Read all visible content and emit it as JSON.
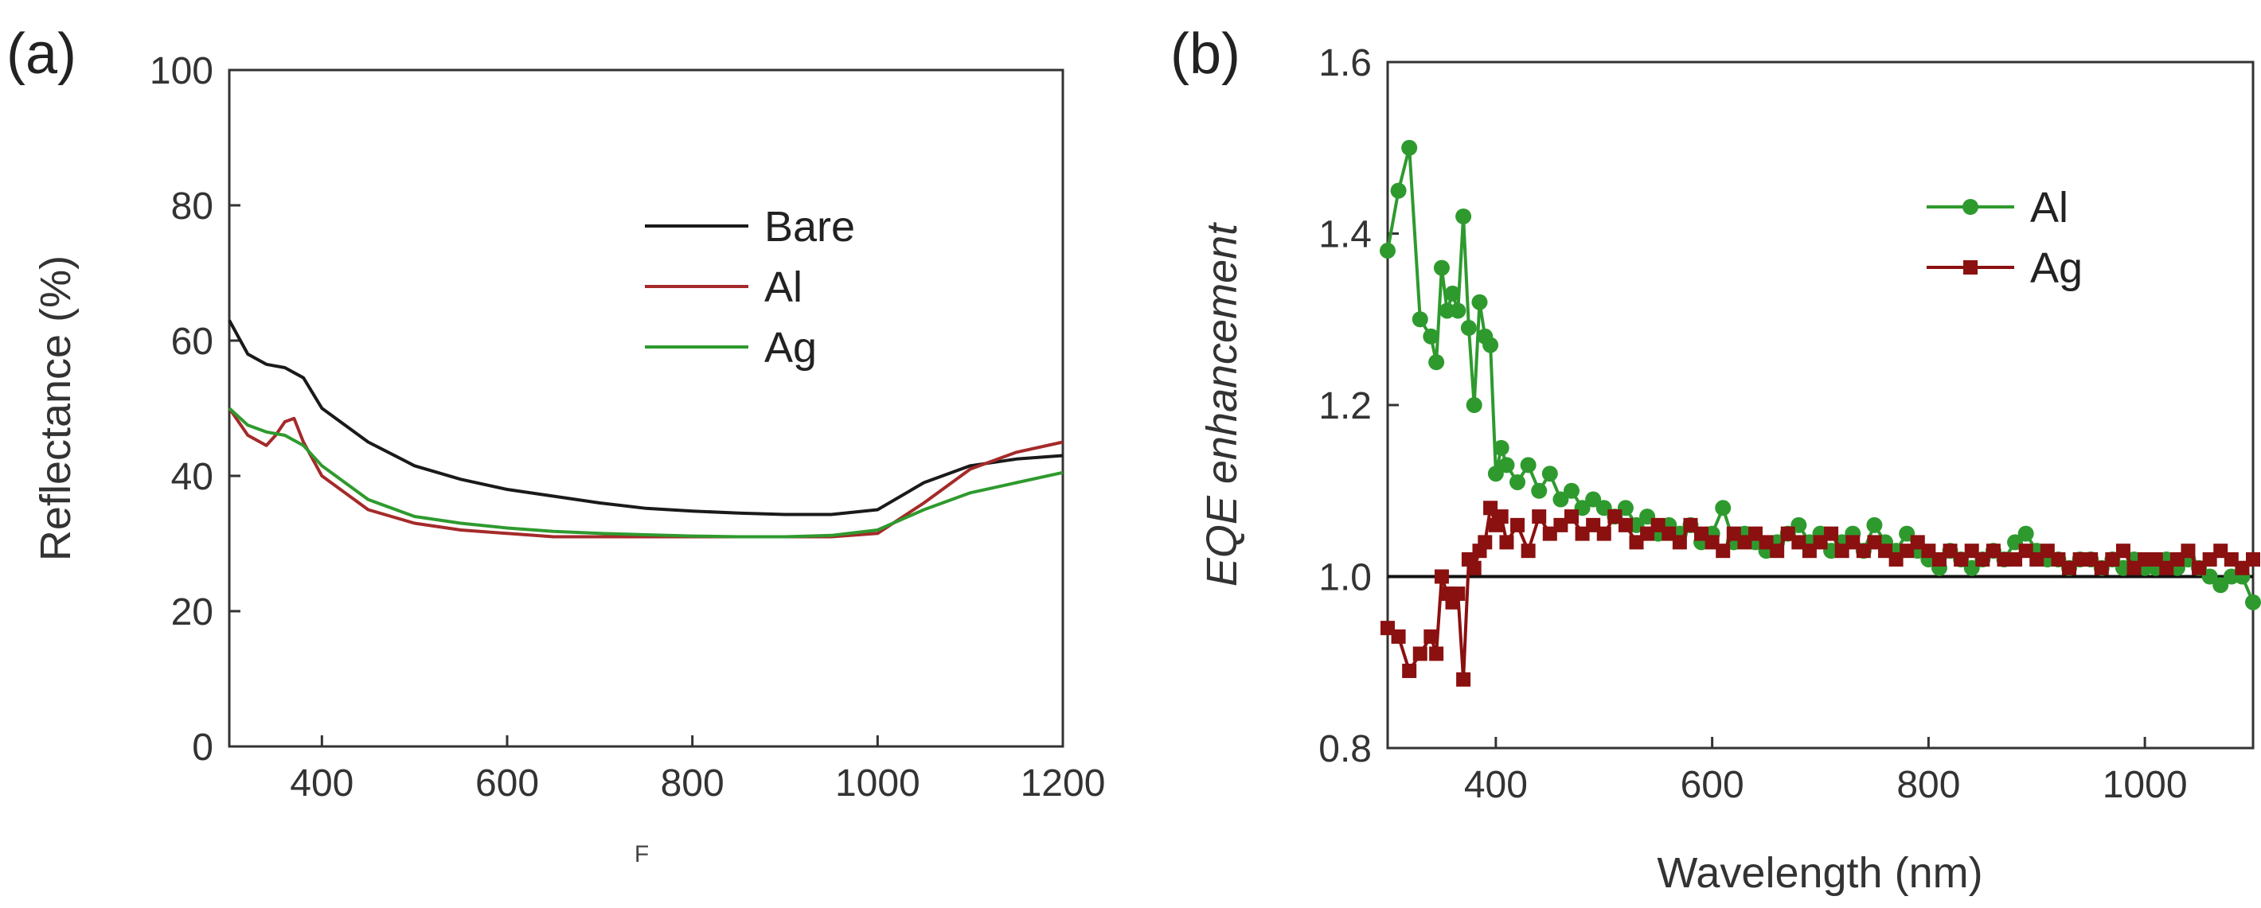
{
  "chart_data": [
    {
      "panel_label": "(a)",
      "type": "line",
      "xlabel": "F",
      "ylabel": "Reflectance (%)",
      "xlim": [
        300,
        1200
      ],
      "ylim": [
        0,
        100
      ],
      "xticks": [
        400,
        600,
        800,
        1000,
        1200
      ],
      "yticks": [
        0,
        20,
        40,
        60,
        80,
        100
      ],
      "legend_position": "top-right",
      "grid": false,
      "series": [
        {
          "name": "Bare",
          "color": "#1a1a1a",
          "x": [
            300,
            320,
            340,
            360,
            380,
            400,
            450,
            500,
            550,
            600,
            650,
            700,
            750,
            800,
            850,
            900,
            950,
            1000,
            1050,
            1100,
            1150,
            1200
          ],
          "y": [
            63,
            58,
            56.5,
            56,
            54.5,
            50,
            45,
            41.5,
            39.5,
            38,
            37,
            36,
            35.2,
            34.8,
            34.5,
            34.3,
            34.3,
            35,
            39,
            41.5,
            42.5,
            43
          ]
        },
        {
          "name": "Al",
          "color": "#a52a2a",
          "x": [
            300,
            320,
            340,
            350,
            360,
            370,
            380,
            400,
            450,
            500,
            550,
            600,
            650,
            700,
            750,
            800,
            850,
            900,
            950,
            1000,
            1050,
            1100,
            1150,
            1200
          ],
          "y": [
            50,
            46,
            44.5,
            46,
            48,
            48.5,
            45,
            40,
            35,
            33,
            32,
            31.5,
            31,
            31,
            31,
            31,
            31,
            31,
            31,
            31.5,
            36,
            41,
            43.5,
            45
          ]
        },
        {
          "name": "Ag",
          "color": "#2e9a2e",
          "x": [
            300,
            320,
            340,
            360,
            380,
            400,
            450,
            500,
            550,
            600,
            650,
            700,
            750,
            800,
            850,
            900,
            950,
            1000,
            1050,
            1100,
            1150,
            1200
          ],
          "y": [
            50,
            47.5,
            46.5,
            46,
            44.5,
            41.5,
            36.5,
            34,
            33,
            32.3,
            31.8,
            31.5,
            31.3,
            31.1,
            31,
            31,
            31.2,
            32,
            35,
            37.5,
            39,
            40.5
          ]
        }
      ]
    },
    {
      "panel_label": "(b)",
      "type": "line",
      "xlabel": "Wavelength (nm)",
      "ylabel": "EQE enhancement",
      "xlim": [
        300,
        1100
      ],
      "ylim": [
        0.8,
        1.6
      ],
      "xticks": [
        400,
        600,
        800,
        1000
      ],
      "yticks": [
        0.8,
        1.0,
        1.2,
        1.4,
        1.6
      ],
      "reference_line": 1.0,
      "legend_position": "top-right",
      "grid": false,
      "series": [
        {
          "name": "Al",
          "color": "#2e9a2e",
          "marker": "circle",
          "x": [
            300,
            310,
            320,
            330,
            340,
            345,
            350,
            355,
            360,
            365,
            370,
            375,
            380,
            385,
            390,
            395,
            400,
            405,
            410,
            420,
            430,
            440,
            450,
            460,
            470,
            480,
            490,
            500,
            510,
            520,
            530,
            540,
            550,
            560,
            570,
            580,
            590,
            600,
            610,
            620,
            630,
            640,
            650,
            660,
            670,
            680,
            690,
            700,
            710,
            720,
            730,
            740,
            750,
            760,
            770,
            780,
            790,
            800,
            810,
            820,
            830,
            840,
            850,
            860,
            870,
            880,
            890,
            900,
            910,
            920,
            930,
            940,
            950,
            960,
            970,
            980,
            990,
            1000,
            1010,
            1020,
            1030,
            1040,
            1050,
            1060,
            1070,
            1080,
            1090,
            1100
          ],
          "y": [
            1.38,
            1.45,
            1.5,
            1.3,
            1.28,
            1.25,
            1.36,
            1.31,
            1.33,
            1.31,
            1.42,
            1.29,
            1.2,
            1.32,
            1.28,
            1.27,
            1.12,
            1.15,
            1.13,
            1.11,
            1.13,
            1.1,
            1.12,
            1.09,
            1.1,
            1.08,
            1.09,
            1.08,
            1.07,
            1.08,
            1.06,
            1.07,
            1.05,
            1.06,
            1.05,
            1.06,
            1.04,
            1.05,
            1.08,
            1.04,
            1.05,
            1.04,
            1.03,
            1.04,
            1.05,
            1.06,
            1.04,
            1.05,
            1.03,
            1.04,
            1.05,
            1.03,
            1.06,
            1.04,
            1.03,
            1.05,
            1.03,
            1.02,
            1.01,
            1.03,
            1.02,
            1.01,
            1.02,
            1.03,
            1.02,
            1.04,
            1.05,
            1.03,
            1.02,
            1.02,
            1.01,
            1.02,
            1.02,
            1.01,
            1.02,
            1.01,
            1.02,
            1.01,
            1.01,
            1.02,
            1.01,
            1.02,
            1.01,
            1.0,
            0.99,
            1.0,
            1.0,
            0.97
          ]
        },
        {
          "name": "Ag",
          "color": "#8b1010",
          "marker": "square",
          "x": [
            300,
            310,
            320,
            330,
            340,
            345,
            350,
            355,
            360,
            365,
            370,
            375,
            380,
            385,
            390,
            395,
            400,
            405,
            410,
            420,
            430,
            440,
            450,
            460,
            470,
            480,
            490,
            500,
            510,
            520,
            530,
            540,
            550,
            560,
            570,
            580,
            590,
            600,
            610,
            620,
            630,
            640,
            650,
            660,
            670,
            680,
            690,
            700,
            710,
            720,
            730,
            740,
            750,
            760,
            770,
            780,
            790,
            800,
            810,
            820,
            830,
            840,
            850,
            860,
            870,
            880,
            890,
            900,
            910,
            920,
            930,
            940,
            950,
            960,
            970,
            980,
            990,
            1000,
            1010,
            1020,
            1030,
            1040,
            1050,
            1060,
            1070,
            1080,
            1090,
            1100
          ],
          "y": [
            0.94,
            0.93,
            0.89,
            0.91,
            0.93,
            0.91,
            1.0,
            0.98,
            0.97,
            0.98,
            0.88,
            1.02,
            1.01,
            1.03,
            1.04,
            1.08,
            1.06,
            1.07,
            1.04,
            1.06,
            1.03,
            1.07,
            1.05,
            1.06,
            1.07,
            1.05,
            1.06,
            1.05,
            1.07,
            1.06,
            1.04,
            1.05,
            1.06,
            1.05,
            1.04,
            1.06,
            1.05,
            1.04,
            1.03,
            1.05,
            1.04,
            1.05,
            1.04,
            1.03,
            1.05,
            1.04,
            1.03,
            1.04,
            1.05,
            1.03,
            1.04,
            1.03,
            1.04,
            1.03,
            1.02,
            1.03,
            1.04,
            1.03,
            1.02,
            1.03,
            1.02,
            1.03,
            1.02,
            1.03,
            1.02,
            1.02,
            1.03,
            1.02,
            1.03,
            1.02,
            1.01,
            1.02,
            1.02,
            1.01,
            1.02,
            1.03,
            1.01,
            1.02,
            1.02,
            1.01,
            1.02,
            1.03,
            1.01,
            1.02,
            1.03,
            1.02,
            1.01,
            1.02
          ]
        }
      ]
    }
  ]
}
